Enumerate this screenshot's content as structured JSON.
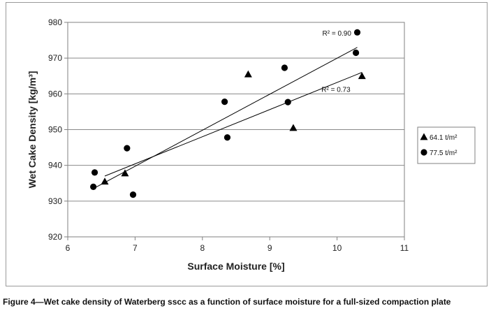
{
  "caption": "Figure 4—Wet cake density of Waterberg sscc as a function of surface moisture for a full-sized compaction plate",
  "chart_data": {
    "type": "scatter",
    "title": "",
    "xlabel": "Surface Moisture [%]",
    "ylabel": "Wet Cake Density [kg/m³]",
    "xlim": [
      6,
      11
    ],
    "ylim": [
      920,
      980
    ],
    "xticks": [
      6,
      7,
      8,
      9,
      10,
      11
    ],
    "yticks": [
      920,
      930,
      940,
      950,
      960,
      970,
      980
    ],
    "grid": "horizontal",
    "legend_position": "right",
    "series": [
      {
        "name": "64.1 t/m²",
        "marker": "triangle",
        "color": "#000000",
        "x": [
          6.55,
          6.85,
          8.68,
          9.35,
          10.37
        ],
        "y": [
          935.5,
          937.8,
          965.5,
          950.5,
          965.0
        ],
        "trendline": {
          "r2_label": "R² = 0.73",
          "x": [
            6.55,
            10.37
          ],
          "y": [
            937.0,
            966.0
          ]
        }
      },
      {
        "name": "77.5 t/m²",
        "marker": "circle",
        "color": "#000000",
        "x": [
          6.38,
          6.4,
          6.88,
          6.97,
          8.33,
          8.37,
          9.22,
          9.27,
          10.28,
          10.3
        ],
        "y": [
          934.0,
          938.0,
          944.8,
          931.8,
          957.8,
          947.8,
          967.3,
          957.7,
          971.5,
          977.2
        ],
        "trendline": {
          "r2_label": "R² = 0.90",
          "x": [
            6.38,
            10.3
          ],
          "y": [
            933.5,
            973.0
          ]
        }
      }
    ]
  }
}
